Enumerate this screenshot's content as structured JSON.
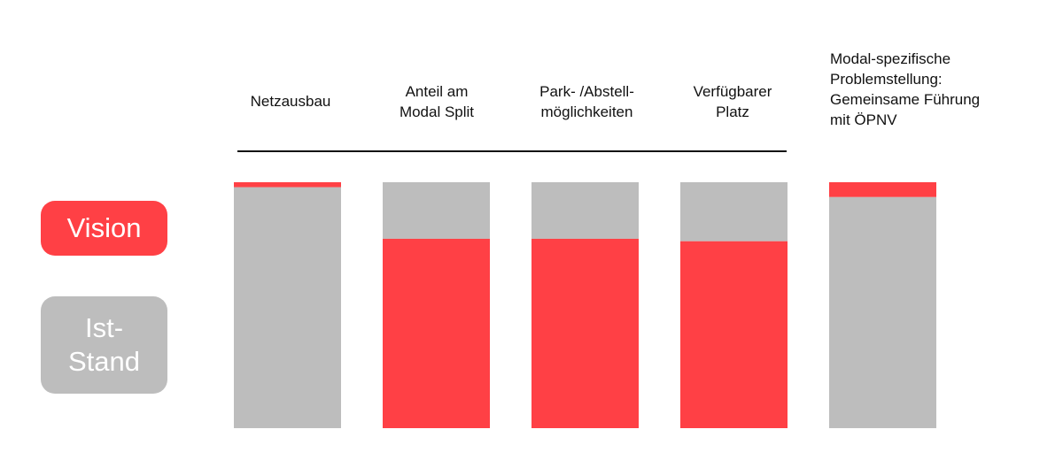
{
  "colors": {
    "vision": "#ff4045",
    "ist": "#bdbdbd",
    "rule": "#111111"
  },
  "legend": {
    "vision_label": "Vision",
    "ist_label_line1": "Ist-",
    "ist_label_line2": "Stand"
  },
  "chart_data": {
    "type": "bar",
    "stacked": true,
    "categories": [
      [
        "Netzausbau"
      ],
      [
        "Anteil am",
        "Modal Split"
      ],
      [
        "Park- /Abstell-",
        "möglichkeiten"
      ],
      [
        "Verfügbarer",
        "Platz"
      ],
      [
        "Modal-spezifische",
        "Problemstellung:",
        "Gemeinsame Führung",
        "mit ÖPNV"
      ]
    ],
    "series": [
      {
        "name": "Vision",
        "color": "#ff4045",
        "values": [
          2,
          77,
          77,
          76,
          6
        ]
      },
      {
        "name": "Ist-Stand",
        "color": "#bdbdbd",
        "values": [
          98,
          23,
          23,
          24,
          94
        ]
      }
    ],
    "ylim": [
      0,
      100
    ],
    "grid": false,
    "legend": "left"
  }
}
